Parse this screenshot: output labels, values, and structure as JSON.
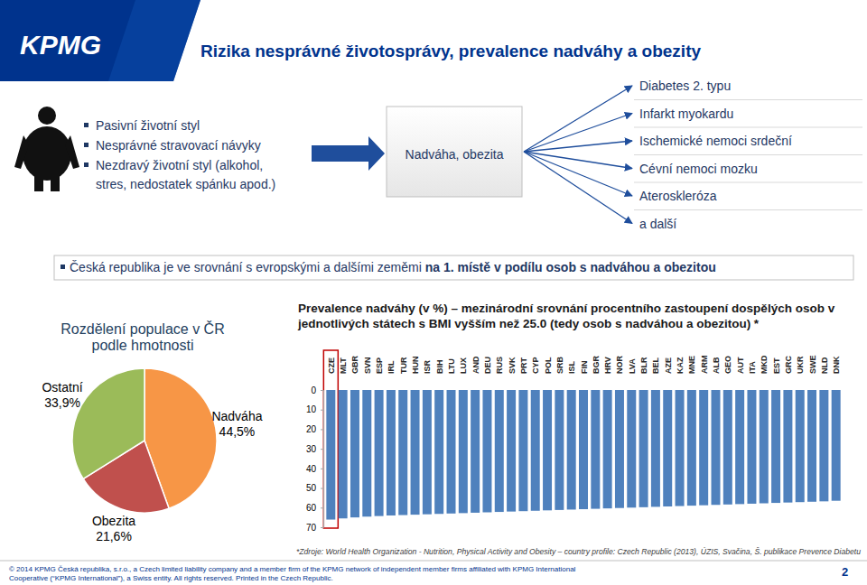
{
  "header": {
    "logo": "KPMG",
    "title": "Rizika nesprávné životosprávy, prevalence nadváhy a obezity"
  },
  "causes": [
    [
      "Pasivní životní styl"
    ],
    [
      "Nesprávné stravovací návyky"
    ],
    [
      "Nezdravý životní styl (alkohol,",
      "stres, nedostatek spánku apod.)"
    ]
  ],
  "diagram": {
    "center": "Nadváha, obezita",
    "effects": [
      "Diabetes 2. typu",
      "Infarkt myokardu",
      "Ischemické nemoci srdeční",
      "Cévní nemoci mozku",
      "Ateroskleróza",
      "a další"
    ]
  },
  "statement": {
    "text": "Česká republika je ve srovnání s evropskými a dalšími zeměmi ",
    "emphasis": "na 1. místě v podílu osob s nadváhou a obezitou"
  },
  "chart_data": [
    {
      "type": "pie",
      "title": "Rozdělení populace v ČR podle hmotnosti",
      "categories": [
        "Nadváha",
        "Obezita",
        "Ostatní"
      ],
      "values": [
        44.5,
        21.6,
        33.9
      ],
      "value_labels": [
        "44,5%",
        "21,6%",
        "33,9%"
      ],
      "colors": [
        "#f79646",
        "#c0504d",
        "#9bbb59"
      ],
      "data_labels": true
    },
    {
      "type": "bar",
      "title": "Prevalence nadváhy (v %) – mezinárodní srovnání procentního zastoupení dospělých osob v jednotlivých státech s BMI vyšším než 25.0 (tedy osob s nadváhou a obezitou) *",
      "categories": [
        "CZE",
        "MLT",
        "GBR",
        "SVN",
        "ESP",
        "IRL",
        "TUR",
        "HUN",
        "ISR",
        "BIH",
        "LTU",
        "LUX",
        "AND",
        "DEU",
        "RUS",
        "SVK",
        "PRT",
        "CYP",
        "POL",
        "SRB",
        "ISL",
        "FIN",
        "BGR",
        "HRV",
        "NOR",
        "LVA",
        "BLR",
        "BEL",
        "AZE",
        "KAZ",
        "MNE",
        "ARM",
        "ALB",
        "GEO",
        "AUT",
        "ITA",
        "MKD",
        "EST",
        "GRC",
        "UKR",
        "SWE",
        "NLD",
        "DNK"
      ],
      "values": [
        66.1,
        65.5,
        65.0,
        64.6,
        64.3,
        64.0,
        63.8,
        63.6,
        63.4,
        63.2,
        63.0,
        62.8,
        62.6,
        62.4,
        62.2,
        62.0,
        61.8,
        61.6,
        61.4,
        61.2,
        61.0,
        60.8,
        60.6,
        60.4,
        60.2,
        60.0,
        59.8,
        59.6,
        59.4,
        59.2,
        59.0,
        58.8,
        58.6,
        58.4,
        58.2,
        58.0,
        57.8,
        57.6,
        57.4,
        57.2,
        57.0,
        56.8,
        56.5
      ],
      "color": "#4f81bd",
      "ylim": [
        0,
        70
      ],
      "yticks": [
        0,
        10,
        20,
        30,
        40,
        50,
        60,
        70
      ],
      "grid": false
    }
  ],
  "footnote": "*Zdroje: World Health Organization - Nutrition, Physical Activity and Obesity – country profile: Czech Republic (2013), ÚZIS, Svačina, Š. publikace Prevence Diabetu",
  "footer": {
    "lines": [
      "© 2014 KPMG Česká republika, s.r.o., a Czech limited liability company and a member firm of the KPMG network of independent member firms affiliated with KPMG International",
      "Cooperative (“KPMG International”), a Swiss entity. All rights reserved. Printed in the Czech Republic."
    ],
    "page": 2
  }
}
